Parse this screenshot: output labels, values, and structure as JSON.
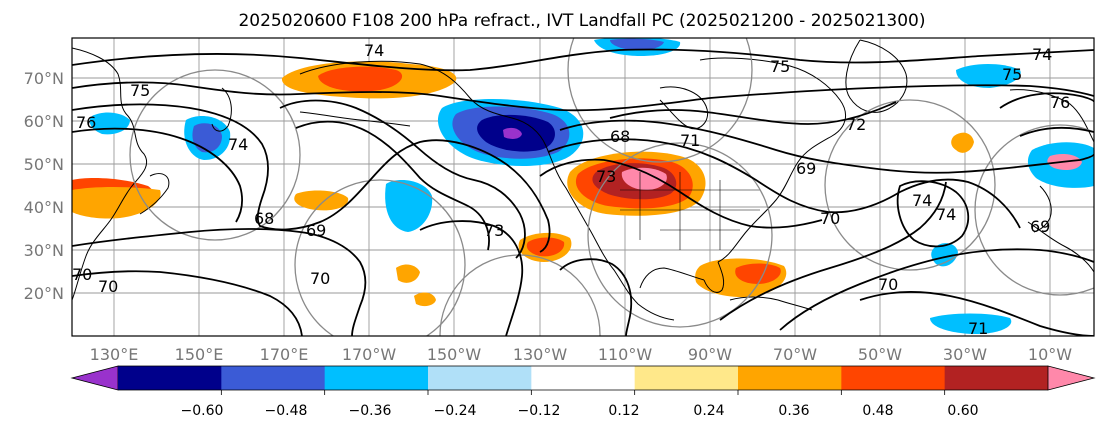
{
  "title": "2025020600 F108 200 hPa refract., IVT Landfall PC (2025021200 - 2025021300)",
  "map": {
    "lat_labels": [
      "70°N",
      "60°N",
      "50°N",
      "40°N",
      "30°N",
      "20°N"
    ],
    "lon_labels": [
      "130°E",
      "150°E",
      "170°E",
      "170°W",
      "150°W",
      "130°W",
      "110°W",
      "90°W",
      "70°W",
      "50°W",
      "30°W",
      "10°W"
    ],
    "contour_labels": [
      "74",
      "75",
      "76",
      "75",
      "74",
      "76",
      "72",
      "71",
      "73",
      "68",
      "69",
      "70",
      "68",
      "69",
      "70",
      "73",
      "74",
      "74",
      "70",
      "69",
      "70",
      "70",
      "71",
      "75",
      "74"
    ]
  },
  "colorbar": {
    "tick_labels": [
      "−0.60",
      "−0.48",
      "−0.36",
      "−0.24",
      "−0.12",
      "0.12",
      "0.24",
      "0.36",
      "0.48",
      "0.60"
    ],
    "colors": [
      "#9932cc",
      "#00008b",
      "#3b5bd6",
      "#00bfff",
      "#b0e0f8",
      "#ffffff",
      "#ffe88a",
      "#ffa500",
      "#ff4500",
      "#b22222",
      "#ff88aa"
    ]
  }
}
